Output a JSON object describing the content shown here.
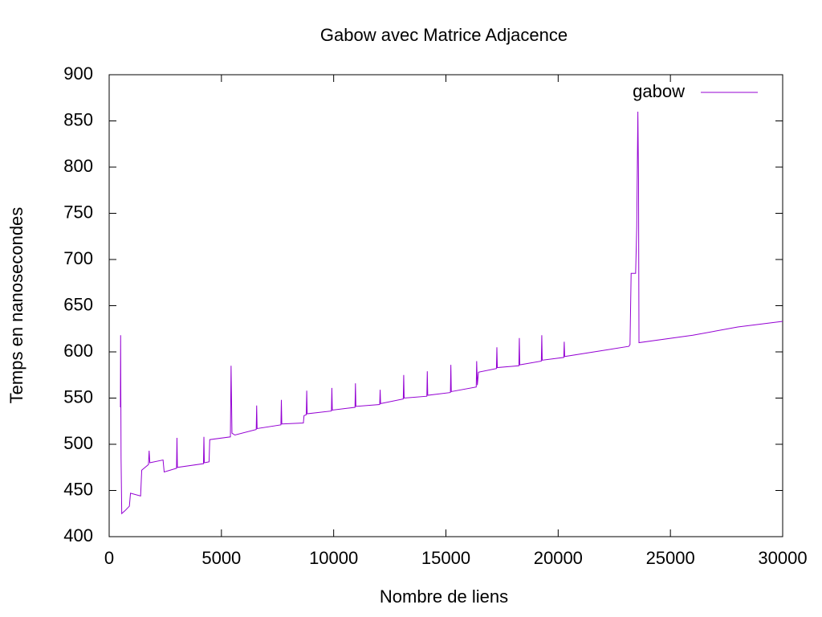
{
  "chart_data": {
    "type": "line",
    "title": "Gabow avec Matrice Adjacence",
    "xlabel": "Nombre de liens",
    "ylabel": "Temps en nanosecondes",
    "xlim": [
      0,
      30000
    ],
    "xticks": [
      0,
      5000,
      10000,
      15000,
      20000,
      25000,
      30000
    ],
    "ylim": [
      400,
      900
    ],
    "yticks": [
      400,
      450,
      500,
      550,
      600,
      650,
      700,
      750,
      800,
      850,
      900
    ],
    "legend": "top-right",
    "series": [
      {
        "name": "gabow",
        "color": "#9400d3",
        "x": [
          500,
          510,
          530,
          560,
          700,
          900,
          950,
          1400,
          1450,
          1750,
          1780,
          1810,
          2400,
          2450,
          3000,
          3020,
          3040,
          4200,
          4220,
          4240,
          4450,
          4480,
          5400,
          5430,
          5470,
          5600,
          6550,
          6570,
          6590,
          7650,
          7670,
          7690,
          8650,
          8680,
          8780,
          8800,
          8820,
          9900,
          9920,
          9940,
          10950,
          10970,
          10990,
          12050,
          12070,
          12090,
          13100,
          13120,
          13140,
          14150,
          14170,
          14190,
          15200,
          15220,
          15240,
          16350,
          16370,
          16400,
          16450,
          17250,
          17270,
          17290,
          18250,
          18270,
          18290,
          19250,
          19270,
          19290,
          20250,
          20270,
          20290,
          23150,
          23200,
          23250,
          23450,
          23500,
          23550,
          23580,
          23600,
          26000,
          28000,
          30000
        ],
        "values": [
          540,
          618,
          485,
          425,
          428,
          433,
          447,
          444,
          472,
          478,
          493,
          480,
          483,
          470,
          474,
          507,
          475,
          479,
          508,
          480,
          481,
          505,
          508,
          585,
          512,
          510,
          516,
          542,
          517,
          521,
          548,
          522,
          523,
          531,
          532,
          558,
          533,
          536,
          561,
          537,
          540,
          566,
          541,
          543,
          559,
          544,
          549,
          575,
          550,
          552,
          579,
          553,
          556,
          586,
          557,
          562,
          590,
          564,
          578,
          582,
          605,
          583,
          585,
          615,
          586,
          590,
          618,
          591,
          594,
          611,
          595,
          606,
          608,
          685,
          685,
          735,
          860,
          785,
          610,
          618,
          627,
          633
        ]
      }
    ]
  }
}
